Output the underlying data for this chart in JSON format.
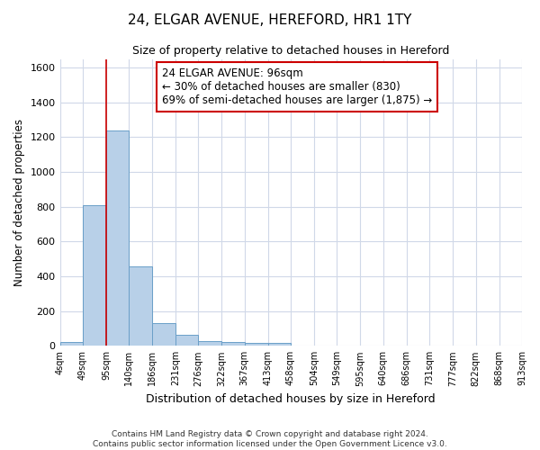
{
  "title1": "24, ELGAR AVENUE, HEREFORD, HR1 1TY",
  "title2": "Size of property relative to detached houses in Hereford",
  "xlabel": "Distribution of detached houses by size in Hereford",
  "ylabel": "Number of detached properties",
  "bar_edges": [
    4,
    49,
    95,
    140,
    186,
    231,
    276,
    322,
    367,
    413,
    458,
    504,
    549,
    595,
    640,
    686,
    731,
    777,
    822,
    868,
    913
  ],
  "bar_heights": [
    20,
    810,
    1240,
    455,
    130,
    65,
    25,
    20,
    15,
    15,
    0,
    0,
    0,
    0,
    0,
    0,
    0,
    0,
    0,
    0
  ],
  "bar_color": "#b8d0e8",
  "bar_edgecolor": "#6a9fc8",
  "vline_x": 95,
  "vline_color": "#cc0000",
  "annotation_text": "24 ELGAR AVENUE: 96sqm\n← 30% of detached houses are smaller (830)\n69% of semi-detached houses are larger (1,875) →",
  "annotation_box_color": "#ffffff",
  "annotation_box_edgecolor": "#cc0000",
  "ylim": [
    0,
    1650
  ],
  "yticks": [
    0,
    200,
    400,
    600,
    800,
    1000,
    1200,
    1400,
    1600
  ],
  "tick_labels": [
    "4sqm",
    "49sqm",
    "95sqm",
    "140sqm",
    "186sqm",
    "231sqm",
    "276sqm",
    "322sqm",
    "367sqm",
    "413sqm",
    "458sqm",
    "504sqm",
    "549sqm",
    "595sqm",
    "640sqm",
    "686sqm",
    "731sqm",
    "777sqm",
    "822sqm",
    "868sqm",
    "913sqm"
  ],
  "footer1": "Contains HM Land Registry data © Crown copyright and database right 2024.",
  "footer2": "Contains public sector information licensed under the Open Government Licence v3.0.",
  "bg_color": "#ffffff",
  "plot_bg_color": "#ffffff",
  "grid_color": "#d0d8e8"
}
